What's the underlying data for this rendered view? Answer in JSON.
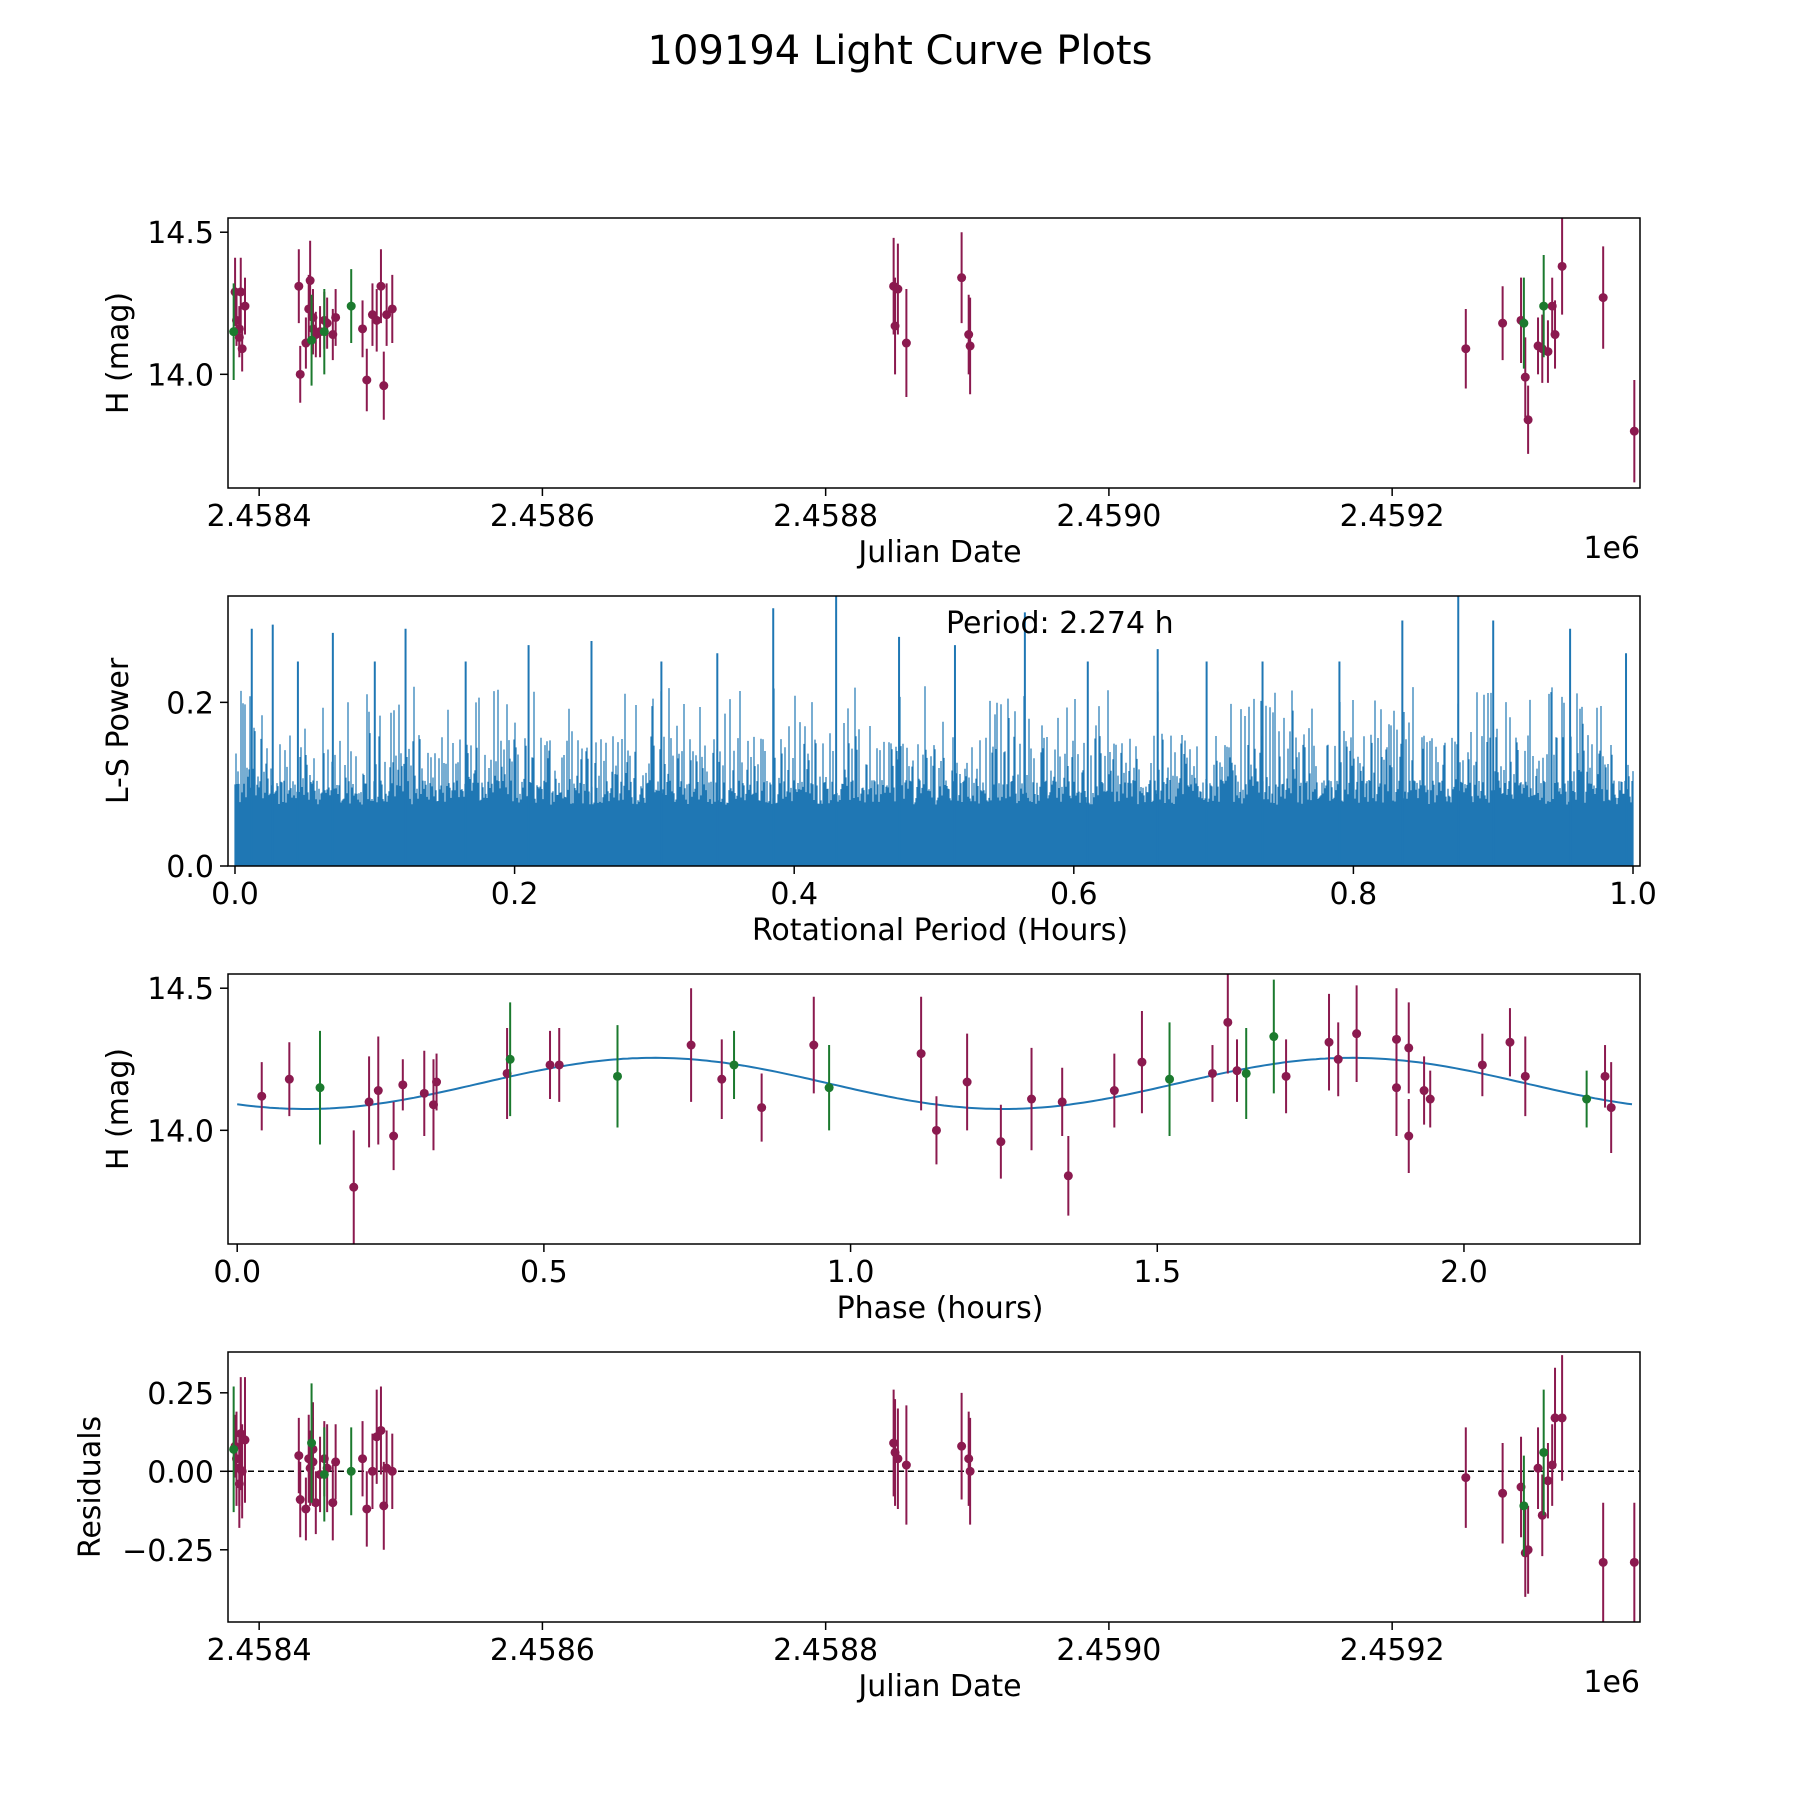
{
  "figure_title": "109194 Light Curve Plots",
  "colors": {
    "maroon": "#8b1a4f",
    "green": "#1b7a2e",
    "line": "#1f77b4",
    "axis": "#000000"
  },
  "chart_data": [
    {
      "id": "lightcurve",
      "type": "scatter",
      "title": "",
      "xlabel": "Julian Date",
      "ylabel": "H (mag)",
      "offset_label": "1e6",
      "xlim": [
        2458378,
        2459375
      ],
      "ylim": [
        13.6,
        14.55
      ],
      "xticks": [
        2458400,
        2458600,
        2458800,
        2459000,
        2459200
      ],
      "xtick_labels": [
        "2.4584",
        "2.4586",
        "2.4588",
        "2.4590",
        "2.4592"
      ],
      "yticks": [
        14.0,
        14.5
      ],
      "ytick_labels": [
        "14.0",
        "14.5"
      ],
      "series": [
        {
          "name": "maroon",
          "color": "#8b1a4f",
          "points": [
            [
              2458383,
              14.29,
              0.12
            ],
            [
              2458384,
              14.19,
              0.09
            ],
            [
              2458386,
              14.16,
              0.08
            ],
            [
              2458386,
              14.13,
              0.07
            ],
            [
              2458387,
              14.29,
              0.12
            ],
            [
              2458388,
              14.09,
              0.08
            ],
            [
              2458390,
              14.24,
              0.1
            ],
            [
              2458428,
              14.31,
              0.13
            ],
            [
              2458429,
              14.0,
              0.1
            ],
            [
              2458433,
              14.11,
              0.09
            ],
            [
              2458435,
              14.23,
              0.12
            ],
            [
              2458436,
              14.33,
              0.14
            ],
            [
              2458438,
              14.2,
              0.1
            ],
            [
              2458438,
              14.16,
              0.09
            ],
            [
              2458440,
              14.14,
              0.08
            ],
            [
              2458443,
              14.15,
              0.09
            ],
            [
              2458446,
              14.19,
              0.1
            ],
            [
              2458448,
              14.18,
              0.09
            ],
            [
              2458452,
              14.14,
              0.09
            ],
            [
              2458454,
              14.2,
              0.1
            ],
            [
              2458473,
              14.16,
              0.1
            ],
            [
              2458476,
              13.98,
              0.11
            ],
            [
              2458480,
              14.21,
              0.11
            ],
            [
              2458483,
              14.19,
              0.11
            ],
            [
              2458486,
              14.31,
              0.13
            ],
            [
              2458488,
              13.96,
              0.12
            ],
            [
              2458490,
              14.21,
              0.11
            ],
            [
              2458494,
              14.23,
              0.12
            ],
            [
              2458848,
              14.31,
              0.17
            ],
            [
              2458849,
              14.17,
              0.17
            ],
            [
              2458851,
              14.3,
              0.16
            ],
            [
              2458857,
              14.11,
              0.19
            ],
            [
              2458896,
              14.34,
              0.16
            ],
            [
              2458901,
              14.14,
              0.14
            ],
            [
              2458902,
              14.1,
              0.17
            ],
            [
              2459252,
              14.09,
              0.14
            ],
            [
              2459278,
              14.18,
              0.13
            ],
            [
              2459291,
              14.19,
              0.15
            ],
            [
              2459294,
              13.99,
              0.14
            ],
            [
              2459296,
              13.84,
              0.12
            ],
            [
              2459303,
              14.1,
              0.1
            ],
            [
              2459306,
              14.09,
              0.12
            ],
            [
              2459310,
              14.08,
              0.11
            ],
            [
              2459313,
              14.24,
              0.1
            ],
            [
              2459315,
              14.14,
              0.12
            ],
            [
              2459320,
              14.38,
              0.17
            ],
            [
              2459349,
              14.27,
              0.18
            ],
            [
              2459371,
              13.8,
              0.18
            ]
          ]
        },
        {
          "name": "green",
          "color": "#1b7a2e",
          "points": [
            [
              2458382,
              14.15,
              0.17
            ],
            [
              2458437,
              14.12,
              0.16
            ],
            [
              2458446,
              14.15,
              0.15
            ],
            [
              2458465,
              14.24,
              0.13
            ],
            [
              2459293,
              14.18,
              0.16
            ],
            [
              2459307,
              14.24,
              0.18
            ]
          ]
        }
      ]
    },
    {
      "id": "periodogram",
      "type": "line",
      "title": "",
      "annotation": "Period: 2.274 h",
      "xlabel": "Rotational Period (Hours)",
      "ylabel": "L-S Power",
      "xlim": [
        -0.005,
        1.005
      ],
      "ylim": [
        0.0,
        0.33
      ],
      "xticks": [
        0.0,
        0.2,
        0.4,
        0.6,
        0.8,
        1.0
      ],
      "xtick_labels": [
        "0.0",
        "0.2",
        "0.4",
        "0.6",
        "0.8",
        "1.0"
      ],
      "yticks": [
        0.0,
        0.2
      ],
      "ytick_labels": [
        "0.0",
        "0.2"
      ],
      "x_range": [
        0.0,
        1.0
      ],
      "peaks": [
        [
          0.012,
          0.29
        ],
        [
          0.027,
          0.295
        ],
        [
          0.045,
          0.25
        ],
        [
          0.07,
          0.285
        ],
        [
          0.1,
          0.25
        ],
        [
          0.122,
          0.29
        ],
        [
          0.165,
          0.25
        ],
        [
          0.21,
          0.27
        ],
        [
          0.255,
          0.275
        ],
        [
          0.305,
          0.25
        ],
        [
          0.345,
          0.26
        ],
        [
          0.385,
          0.315
        ],
        [
          0.43,
          0.33
        ],
        [
          0.475,
          0.28
        ],
        [
          0.515,
          0.27
        ],
        [
          0.565,
          0.31
        ],
        [
          0.61,
          0.25
        ],
        [
          0.66,
          0.265
        ],
        [
          0.695,
          0.25
        ],
        [
          0.735,
          0.25
        ],
        [
          0.79,
          0.25
        ],
        [
          0.835,
          0.3
        ],
        [
          0.875,
          0.33
        ],
        [
          0.9,
          0.3
        ],
        [
          0.955,
          0.29
        ],
        [
          0.995,
          0.26
        ]
      ]
    },
    {
      "id": "phased",
      "type": "scatter",
      "title": "",
      "xlabel": "Phase (hours)",
      "ylabel": "H (mag)",
      "xlim": [
        -0.015,
        2.287
      ],
      "ylim": [
        13.6,
        14.55
      ],
      "xticks": [
        0.0,
        0.5,
        1.0,
        1.5,
        2.0
      ],
      "xtick_labels": [
        "0.0",
        "0.5",
        "1.0",
        "1.5",
        "2.0"
      ],
      "yticks": [
        14.0,
        14.5
      ],
      "ytick_labels": [
        "14.0",
        "14.5"
      ],
      "model": {
        "mean": 14.165,
        "amplitude": 0.09,
        "period": 1.137,
        "phase_at_max": 0.68,
        "x_range": [
          0.0,
          2.274
        ]
      },
      "series": [
        {
          "name": "maroon",
          "color": "#8b1a4f",
          "points": [
            [
              0.04,
              14.12,
              0.12
            ],
            [
              0.085,
              14.18,
              0.13
            ],
            [
              0.19,
              13.8,
              0.2
            ],
            [
              0.215,
              14.1,
              0.16
            ],
            [
              0.23,
              14.14,
              0.19
            ],
            [
              0.255,
              13.98,
              0.12
            ],
            [
              0.27,
              14.16,
              0.09
            ],
            [
              0.305,
              14.13,
              0.15
            ],
            [
              0.32,
              14.09,
              0.16
            ],
            [
              0.325,
              14.17,
              0.1
            ],
            [
              0.44,
              14.2,
              0.16
            ],
            [
              0.51,
              14.23,
              0.12
            ],
            [
              0.525,
              14.23,
              0.13
            ],
            [
              0.74,
              14.3,
              0.2
            ],
            [
              0.79,
              14.18,
              0.14
            ],
            [
              0.855,
              14.08,
              0.12
            ],
            [
              0.94,
              14.3,
              0.17
            ],
            [
              1.115,
              14.27,
              0.2
            ],
            [
              1.14,
              14.0,
              0.12
            ],
            [
              1.19,
              14.17,
              0.17
            ],
            [
              1.245,
              13.96,
              0.13
            ],
            [
              1.295,
              14.11,
              0.18
            ],
            [
              1.345,
              14.1,
              0.12
            ],
            [
              1.355,
              13.84,
              0.14
            ],
            [
              1.43,
              14.14,
              0.13
            ],
            [
              1.475,
              14.24,
              0.18
            ],
            [
              1.59,
              14.2,
              0.1
            ],
            [
              1.615,
              14.38,
              0.18
            ],
            [
              1.63,
              14.21,
              0.11
            ],
            [
              1.71,
              14.19,
              0.13
            ],
            [
              1.78,
              14.31,
              0.17
            ],
            [
              1.795,
              14.25,
              0.13
            ],
            [
              1.825,
              14.34,
              0.17
            ],
            [
              1.89,
              14.32,
              0.18
            ],
            [
              1.89,
              14.15,
              0.17
            ],
            [
              1.91,
              14.29,
              0.16
            ],
            [
              1.91,
              13.98,
              0.13
            ],
            [
              1.935,
              14.14,
              0.12
            ],
            [
              1.945,
              14.11,
              0.1
            ],
            [
              2.03,
              14.23,
              0.11
            ],
            [
              2.075,
              14.31,
              0.12
            ],
            [
              2.1,
              14.19,
              0.14
            ],
            [
              2.23,
              14.19,
              0.11
            ],
            [
              2.24,
              14.08,
              0.16
            ]
          ]
        },
        {
          "name": "green",
          "color": "#1b7a2e",
          "points": [
            [
              0.135,
              14.15,
              0.2
            ],
            [
              0.445,
              14.25,
              0.2
            ],
            [
              0.62,
              14.19,
              0.18
            ],
            [
              0.81,
              14.23,
              0.12
            ],
            [
              0.965,
              14.15,
              0.15
            ],
            [
              1.52,
              14.18,
              0.2
            ],
            [
              1.645,
              14.2,
              0.16
            ],
            [
              1.69,
              14.33,
              0.2
            ],
            [
              2.2,
              14.11,
              0.1
            ]
          ]
        }
      ]
    },
    {
      "id": "residuals",
      "type": "scatter",
      "title": "",
      "xlabel": "Julian Date",
      "ylabel": "Residuals",
      "offset_label": "1e6",
      "xlim": [
        2458378,
        2459375
      ],
      "ylim": [
        -0.48,
        0.38
      ],
      "xticks": [
        2458400,
        2458600,
        2458800,
        2459000,
        2459200
      ],
      "xtick_labels": [
        "2.4584",
        "2.4586",
        "2.4588",
        "2.4590",
        "2.4592"
      ],
      "yticks": [
        0.25,
        0.0,
        -0.25
      ],
      "ytick_labels": [
        "0.25",
        "0.00",
        "−0.25"
      ],
      "zero_line": 0.0,
      "series": [
        {
          "name": "maroon",
          "color": "#8b1a4f",
          "points": [
            [
              2458383,
              0.08,
              0.1
            ],
            [
              2458384,
              0.04,
              0.15
            ],
            [
              2458386,
              0.01,
              0.12
            ],
            [
              2458386,
              -0.04,
              0.14
            ],
            [
              2458387,
              0.12,
              0.18
            ],
            [
              2458388,
              0.0,
              0.15
            ],
            [
              2458390,
              0.1,
              0.2
            ],
            [
              2458428,
              0.05,
              0.12
            ],
            [
              2458429,
              -0.09,
              0.12
            ],
            [
              2458433,
              -0.12,
              0.1
            ],
            [
              2458435,
              0.04,
              0.14
            ],
            [
              2458436,
              0.01,
              0.12
            ],
            [
              2458438,
              0.07,
              0.15
            ],
            [
              2458438,
              0.03,
              0.14
            ],
            [
              2458440,
              -0.1,
              0.1
            ],
            [
              2458443,
              -0.01,
              0.12
            ],
            [
              2458446,
              0.04,
              0.12
            ],
            [
              2458448,
              0.01,
              0.14
            ],
            [
              2458452,
              -0.1,
              0.12
            ],
            [
              2458454,
              0.03,
              0.12
            ],
            [
              2458473,
              0.04,
              0.12
            ],
            [
              2458476,
              -0.12,
              0.12
            ],
            [
              2458480,
              0.0,
              0.12
            ],
            [
              2458483,
              0.11,
              0.15
            ],
            [
              2458486,
              0.13,
              0.14
            ],
            [
              2458488,
              -0.11,
              0.14
            ],
            [
              2458490,
              0.01,
              0.12
            ],
            [
              2458494,
              0.0,
              0.12
            ],
            [
              2458848,
              0.09,
              0.17
            ],
            [
              2458849,
              0.06,
              0.17
            ],
            [
              2458851,
              0.04,
              0.16
            ],
            [
              2458857,
              0.02,
              0.19
            ],
            [
              2458896,
              0.08,
              0.17
            ],
            [
              2458901,
              0.04,
              0.15
            ],
            [
              2458902,
              0.0,
              0.17
            ],
            [
              2459252,
              -0.02,
              0.16
            ],
            [
              2459278,
              -0.07,
              0.16
            ],
            [
              2459291,
              -0.05,
              0.16
            ],
            [
              2459294,
              -0.26,
              0.14
            ],
            [
              2459296,
              -0.25,
              0.14
            ],
            [
              2459303,
              0.01,
              0.13
            ],
            [
              2459306,
              -0.14,
              0.13
            ],
            [
              2459310,
              -0.03,
              0.12
            ],
            [
              2459313,
              0.02,
              0.13
            ],
            [
              2459315,
              0.17,
              0.16
            ],
            [
              2459320,
              0.17,
              0.2
            ],
            [
              2459349,
              -0.29,
              0.19
            ],
            [
              2459371,
              -0.29,
              0.19
            ]
          ]
        },
        {
          "name": "green",
          "color": "#1b7a2e",
          "points": [
            [
              2458382,
              0.07,
              0.2
            ],
            [
              2458437,
              0.09,
              0.19
            ],
            [
              2458446,
              -0.01,
              0.15
            ],
            [
              2458465,
              0.0,
              0.14
            ],
            [
              2459293,
              -0.11,
              0.16
            ],
            [
              2459307,
              0.06,
              0.2
            ]
          ]
        }
      ]
    }
  ]
}
